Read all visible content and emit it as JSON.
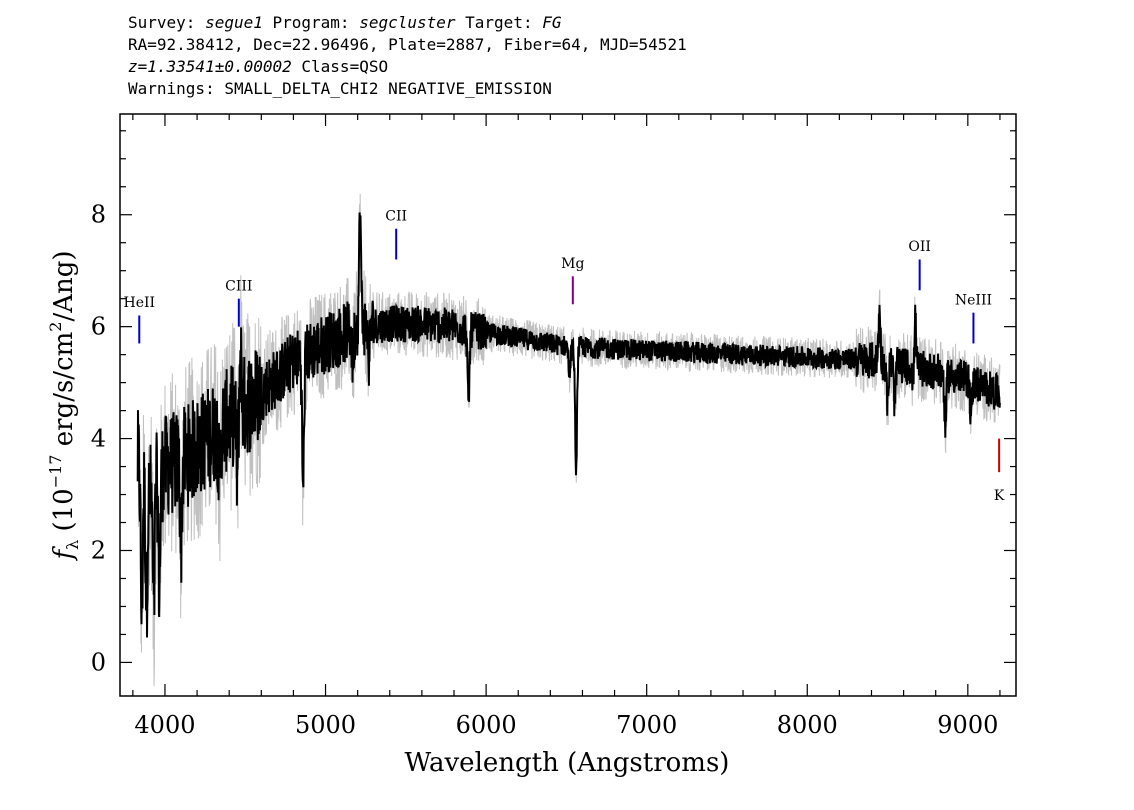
{
  "header": {
    "survey_label": "Survey: ",
    "survey": "segue1",
    "program_label": " Program: ",
    "program": "segcluster",
    "target_label": " Target: ",
    "target": "FG",
    "line2": "RA=92.38412, Dec=22.96496, Plate=2887, Fiber=64, MJD=54521",
    "redshift": "z=1.33541±0.00002",
    "class": " Class=QSO",
    "warnings": "Warnings: SMALL_DELTA_CHI2 NEGATIVE_EMISSION"
  },
  "chart_data": {
    "type": "line",
    "xlabel": "Wavelength (Angstroms)",
    "ylabel_parts": [
      "f",
      "λ",
      " (10",
      "−17",
      " erg/s/cm",
      "2",
      "/Ang)"
    ],
    "xlim": [
      3720,
      9300
    ],
    "ylim": [
      -0.6,
      9.8
    ],
    "xticks_major": [
      4000,
      5000,
      6000,
      7000,
      8000,
      9000
    ],
    "yticks_major": [
      0,
      2,
      4,
      6,
      8
    ],
    "xtick_labels": [
      "4000",
      "5000",
      "6000",
      "7000",
      "8000",
      "9000"
    ],
    "ytick_labels": [
      "0",
      "2",
      "4",
      "6",
      "8"
    ],
    "continuum_knots": [
      [
        3830,
        3.6
      ],
      [
        3900,
        3.0
      ],
      [
        4000,
        3.5
      ],
      [
        4100,
        3.6
      ],
      [
        4300,
        4.1
      ],
      [
        4500,
        4.6
      ],
      [
        4700,
        5.1
      ],
      [
        4800,
        5.4
      ],
      [
        5000,
        5.7
      ],
      [
        5200,
        6.0
      ],
      [
        5400,
        6.05
      ],
      [
        5600,
        6.05
      ],
      [
        5800,
        6.0
      ],
      [
        6000,
        5.9
      ],
      [
        6200,
        5.8
      ],
      [
        6500,
        5.65
      ],
      [
        6800,
        5.6
      ],
      [
        7200,
        5.55
      ],
      [
        7600,
        5.5
      ],
      [
        8000,
        5.45
      ],
      [
        8400,
        5.4
      ],
      [
        8800,
        5.2
      ],
      [
        9000,
        5.05
      ],
      [
        9200,
        4.8
      ]
    ],
    "features": [
      {
        "x": 3855,
        "depth": 2.5
      },
      {
        "x": 3885,
        "depth": 2.0
      },
      {
        "x": 3930,
        "depth": 2.3
      },
      {
        "x": 3965,
        "depth": 2.0
      },
      {
        "x": 4100,
        "depth": 1.4
      },
      {
        "x": 4340,
        "depth": 1.0
      },
      {
        "x": 4450,
        "depth": 1.1
      },
      {
        "x": 4860,
        "depth": 2.4
      },
      {
        "x": 5170,
        "depth": 0.6
      },
      {
        "x": 5270,
        "depth": 0.6
      },
      {
        "x": 5890,
        "depth": 1.4
      },
      {
        "x": 6560,
        "depth": 2.2
      },
      {
        "x": 6520,
        "depth": 0.5
      },
      {
        "x": 8500,
        "depth": 0.7
      },
      {
        "x": 8545,
        "depth": 0.7
      },
      {
        "x": 8665,
        "depth": 0.8
      },
      {
        "x": 8860,
        "depth": 0.9
      },
      {
        "x": 9020,
        "depth": 0.6
      },
      {
        "x": 5215,
        "depth": -2.0
      },
      {
        "x": 4470,
        "depth": -1.0
      },
      {
        "x": 8670,
        "depth": -1.4
      },
      {
        "x": 8450,
        "depth": -0.9
      }
    ],
    "line_markers": [
      {
        "name": "HeII",
        "x": 3840,
        "y_top": 6.2,
        "y_bot": 5.7,
        "label_y": 6.35,
        "color": "#0000cc",
        "position": "above"
      },
      {
        "name": "CIII",
        "x": 4460,
        "y_top": 6.5,
        "y_bot": 6.0,
        "label_y": 6.65,
        "color": "#0000cc",
        "position": "above"
      },
      {
        "name": "CII",
        "x": 5440,
        "y_top": 7.75,
        "y_bot": 7.2,
        "label_y": 7.9,
        "color": "#0000cc",
        "position": "above"
      },
      {
        "name": "Mg",
        "x": 6540,
        "y_top": 6.9,
        "y_bot": 6.4,
        "label_y": 7.05,
        "color": "#800080",
        "position": "above"
      },
      {
        "name": "OII",
        "x": 8700,
        "y_top": 7.2,
        "y_bot": 6.65,
        "label_y": 7.35,
        "color": "#0000cc",
        "position": "above"
      },
      {
        "name": "NeIII",
        "x": 9035,
        "y_top": 6.25,
        "y_bot": 5.7,
        "label_y": 6.4,
        "color": "#0000cc",
        "position": "above"
      },
      {
        "name": "K",
        "x": 9195,
        "y_top": 4.0,
        "y_bot": 3.4,
        "label_y": 2.9,
        "color": "#cc0000",
        "position": "below"
      }
    ],
    "series": [
      {
        "role": "smoothed flux",
        "color": "#000000"
      },
      {
        "role": "raw flux",
        "color": "#c0c0c0"
      }
    ],
    "grid": false
  }
}
